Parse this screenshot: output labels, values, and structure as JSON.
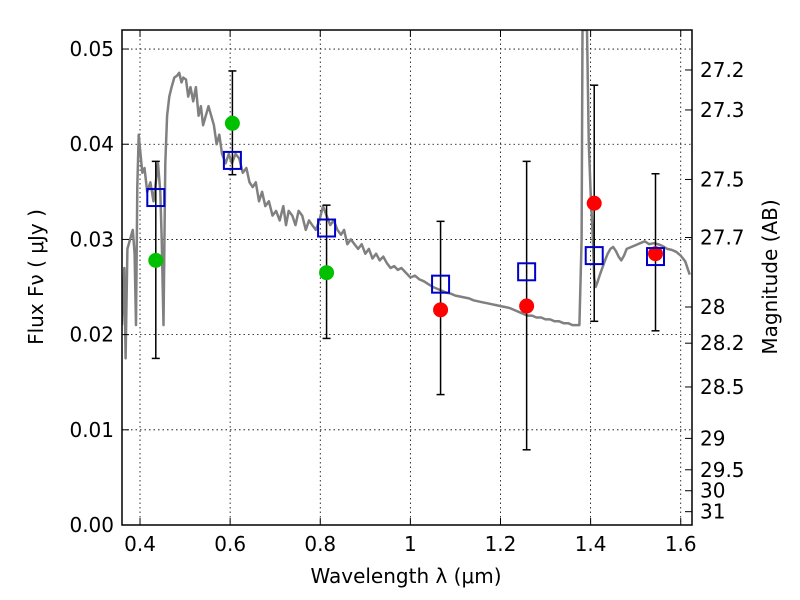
{
  "chart_data": {
    "type": "scatter",
    "xlabel": "Wavelength  λ (μm)",
    "ylabel": "Flux  Fν  ( μJy )",
    "y2label": "Magnitude (AB)",
    "xlim": [
      0.36,
      1.625
    ],
    "ylim": [
      0.0,
      0.052
    ],
    "grid": true,
    "x_ticks": [
      {
        "value": 0.4,
        "label": "0.4"
      },
      {
        "value": 0.6,
        "label": "0.6"
      },
      {
        "value": 0.8,
        "label": "0.8"
      },
      {
        "value": 1.0,
        "label": "1"
      },
      {
        "value": 1.2,
        "label": "1.2"
      },
      {
        "value": 1.4,
        "label": "1.4"
      },
      {
        "value": 1.6,
        "label": "1.6"
      }
    ],
    "y_ticks": [
      {
        "value": 0.0,
        "label": "0.00"
      },
      {
        "value": 0.01,
        "label": "0.01"
      },
      {
        "value": 0.02,
        "label": "0.02"
      },
      {
        "value": 0.03,
        "label": "0.03"
      },
      {
        "value": 0.04,
        "label": "0.04"
      },
      {
        "value": 0.05,
        "label": "0.05"
      }
    ],
    "mag_ticks": [
      {
        "label": "27.2",
        "flux": 0.0478
      },
      {
        "label": "27.3",
        "flux": 0.0436
      },
      {
        "label": "27.5",
        "flux": 0.0363
      },
      {
        "label": "27.7",
        "flux": 0.0302
      },
      {
        "label": "28",
        "flux": 0.0229
      },
      {
        "label": "28.2",
        "flux": 0.0191
      },
      {
        "label": "28.5",
        "flux": 0.0145
      },
      {
        "label": "29",
        "flux": 0.0091
      },
      {
        "label": "29.5",
        "flux": 0.0058
      },
      {
        "label": "30",
        "flux": 0.0036
      },
      {
        "label": "31",
        "flux": 0.0014
      }
    ],
    "series": [
      {
        "kind": "line",
        "color": "#808080",
        "points": [
          [
            0.36,
            0.021
          ],
          [
            0.365,
            0.027
          ],
          [
            0.368,
            0.0175
          ],
          [
            0.372,
            0.029
          ],
          [
            0.378,
            0.03
          ],
          [
            0.384,
            0.031
          ],
          [
            0.388,
            0.0285
          ],
          [
            0.391,
            0.021
          ],
          [
            0.394,
            0.0355
          ],
          [
            0.397,
            0.041
          ],
          [
            0.401,
            0.039
          ],
          [
            0.405,
            0.037
          ],
          [
            0.41,
            0.0375
          ],
          [
            0.416,
            0.035
          ],
          [
            0.423,
            0.036
          ],
          [
            0.43,
            0.034
          ],
          [
            0.435,
            0.036
          ],
          [
            0.44,
            0.038
          ],
          [
            0.445,
            0.035
          ],
          [
            0.448,
            0.03
          ],
          [
            0.452,
            0.021
          ],
          [
            0.456,
            0.038
          ],
          [
            0.46,
            0.043
          ],
          [
            0.465,
            0.045
          ],
          [
            0.47,
            0.046
          ],
          [
            0.476,
            0.047
          ],
          [
            0.482,
            0.0472
          ],
          [
            0.487,
            0.0475
          ],
          [
            0.492,
            0.0465
          ],
          [
            0.496,
            0.047
          ],
          [
            0.502,
            0.0468
          ],
          [
            0.507,
            0.045
          ],
          [
            0.512,
            0.046
          ],
          [
            0.518,
            0.0445
          ],
          [
            0.524,
            0.046
          ],
          [
            0.53,
            0.043
          ],
          [
            0.535,
            0.044
          ],
          [
            0.54,
            0.042
          ],
          [
            0.546,
            0.043
          ],
          [
            0.552,
            0.044
          ],
          [
            0.558,
            0.043
          ],
          [
            0.564,
            0.042
          ],
          [
            0.57,
            0.04
          ],
          [
            0.576,
            0.041
          ],
          [
            0.582,
            0.039
          ],
          [
            0.59,
            0.038
          ],
          [
            0.597,
            0.039
          ],
          [
            0.604,
            0.038
          ],
          [
            0.612,
            0.039
          ],
          [
            0.62,
            0.0385
          ],
          [
            0.628,
            0.037
          ],
          [
            0.636,
            0.0375
          ],
          [
            0.643,
            0.036
          ],
          [
            0.65,
            0.0355
          ],
          [
            0.657,
            0.036
          ],
          [
            0.664,
            0.034
          ],
          [
            0.671,
            0.035
          ],
          [
            0.678,
            0.0335
          ],
          [
            0.686,
            0.034
          ],
          [
            0.694,
            0.0325
          ],
          [
            0.702,
            0.033
          ],
          [
            0.71,
            0.032
          ],
          [
            0.718,
            0.0335
          ],
          [
            0.724,
            0.0315
          ],
          [
            0.73,
            0.033
          ],
          [
            0.738,
            0.0325
          ],
          [
            0.745,
            0.0315
          ],
          [
            0.752,
            0.033
          ],
          [
            0.76,
            0.0325
          ],
          [
            0.768,
            0.031
          ],
          [
            0.775,
            0.032
          ],
          [
            0.782,
            0.0315
          ],
          [
            0.79,
            0.031
          ],
          [
            0.798,
            0.032
          ],
          [
            0.806,
            0.0335
          ],
          [
            0.814,
            0.0325
          ],
          [
            0.822,
            0.0315
          ],
          [
            0.83,
            0.032
          ],
          [
            0.838,
            0.031
          ],
          [
            0.846,
            0.0305
          ],
          [
            0.853,
            0.031
          ],
          [
            0.86,
            0.0295
          ],
          [
            0.868,
            0.03
          ],
          [
            0.876,
            0.0295
          ],
          [
            0.884,
            0.029
          ],
          [
            0.892,
            0.0295
          ],
          [
            0.9,
            0.0285
          ],
          [
            0.908,
            0.029
          ],
          [
            0.916,
            0.028
          ],
          [
            0.924,
            0.0285
          ],
          [
            0.932,
            0.0278
          ],
          [
            0.94,
            0.0282
          ],
          [
            0.948,
            0.0275
          ],
          [
            0.956,
            0.027
          ],
          [
            0.964,
            0.0272
          ],
          [
            0.972,
            0.0268
          ],
          [
            0.98,
            0.027
          ],
          [
            0.99,
            0.0265
          ],
          [
            1.0,
            0.026
          ],
          [
            1.01,
            0.0262
          ],
          [
            1.02,
            0.0258
          ],
          [
            1.03,
            0.0256
          ],
          [
            1.04,
            0.0253
          ],
          [
            1.05,
            0.025
          ],
          [
            1.06,
            0.0248
          ],
          [
            1.07,
            0.0246
          ],
          [
            1.08,
            0.0244
          ],
          [
            1.09,
            0.0243
          ],
          [
            1.1,
            0.0241
          ],
          [
            1.11,
            0.024
          ],
          [
            1.12,
            0.0239
          ],
          [
            1.13,
            0.0238
          ],
          [
            1.14,
            0.0236
          ],
          [
            1.15,
            0.0235
          ],
          [
            1.16,
            0.0234
          ],
          [
            1.17,
            0.0233
          ],
          [
            1.18,
            0.0232
          ],
          [
            1.19,
            0.0231
          ],
          [
            1.2,
            0.023
          ],
          [
            1.21,
            0.0229
          ],
          [
            1.22,
            0.0228
          ],
          [
            1.23,
            0.0226
          ],
          [
            1.24,
            0.0224
          ],
          [
            1.25,
            0.0222
          ],
          [
            1.26,
            0.022
          ],
          [
            1.27,
            0.022
          ],
          [
            1.28,
            0.0218
          ],
          [
            1.29,
            0.0218
          ],
          [
            1.3,
            0.0216
          ],
          [
            1.31,
            0.0216
          ],
          [
            1.32,
            0.0214
          ],
          [
            1.33,
            0.0214
          ],
          [
            1.34,
            0.0212
          ],
          [
            1.35,
            0.0212
          ],
          [
            1.36,
            0.021
          ],
          [
            1.37,
            0.021
          ],
          [
            1.375,
            0.021
          ],
          [
            1.38,
            0.03
          ],
          [
            1.382,
            0.052
          ],
          [
            1.392,
            0.052
          ],
          [
            1.396,
            0.04
          ],
          [
            1.4,
            0.035
          ],
          [
            1.405,
            0.03
          ],
          [
            1.408,
            0.026
          ],
          [
            1.411,
            0.025
          ],
          [
            1.415,
            0.0255
          ],
          [
            1.42,
            0.0262
          ],
          [
            1.426,
            0.027
          ],
          [
            1.432,
            0.0278
          ],
          [
            1.438,
            0.0285
          ],
          [
            1.444,
            0.029
          ],
          [
            1.45,
            0.0292
          ],
          [
            1.456,
            0.0288
          ],
          [
            1.462,
            0.0282
          ],
          [
            1.468,
            0.0278
          ],
          [
            1.474,
            0.0283
          ],
          [
            1.48,
            0.029
          ],
          [
            1.49,
            0.0292
          ],
          [
            1.5,
            0.0294
          ],
          [
            1.51,
            0.0296
          ],
          [
            1.52,
            0.0298
          ],
          [
            1.53,
            0.0295
          ],
          [
            1.54,
            0.0296
          ],
          [
            1.55,
            0.0295
          ],
          [
            1.56,
            0.0293
          ],
          [
            1.57,
            0.029
          ],
          [
            1.58,
            0.0289
          ],
          [
            1.59,
            0.0287
          ],
          [
            1.6,
            0.0283
          ],
          [
            1.61,
            0.0277
          ],
          [
            1.62,
            0.0263
          ]
        ]
      },
      {
        "kind": "errorbar-marker",
        "marker": "circle",
        "points": [
          {
            "x": 0.435,
            "y": 0.0278,
            "ylow": 0.0175,
            "yhigh": 0.0382,
            "color": "#00c000"
          },
          {
            "x": 0.605,
            "y": 0.0422,
            "ylow": 0.0368,
            "yhigh": 0.0477,
            "color": "#00c000"
          },
          {
            "x": 0.814,
            "y": 0.0265,
            "ylow": 0.0196,
            "yhigh": 0.0336,
            "color": "#00c000"
          },
          {
            "x": 1.067,
            "y": 0.0226,
            "ylow": 0.0137,
            "yhigh": 0.0319,
            "color": "#ff0000"
          },
          {
            "x": 1.258,
            "y": 0.023,
            "ylow": 0.0079,
            "yhigh": 0.0382,
            "color": "#ff0000"
          },
          {
            "x": 1.408,
            "y": 0.0338,
            "ylow": 0.0214,
            "yhigh": 0.0462,
            "color": "#ff0000"
          },
          {
            "x": 1.544,
            "y": 0.0285,
            "ylow": 0.0204,
            "yhigh": 0.0369,
            "color": "#ff0000"
          }
        ]
      },
      {
        "kind": "marker",
        "marker": "square-open",
        "color": "#0000cc",
        "points": [
          [
            0.435,
            0.0344
          ],
          [
            0.605,
            0.0383
          ],
          [
            0.814,
            0.0312
          ],
          [
            1.067,
            0.0253
          ],
          [
            1.258,
            0.0266
          ],
          [
            1.408,
            0.0283
          ],
          [
            1.544,
            0.0282
          ]
        ]
      }
    ]
  }
}
